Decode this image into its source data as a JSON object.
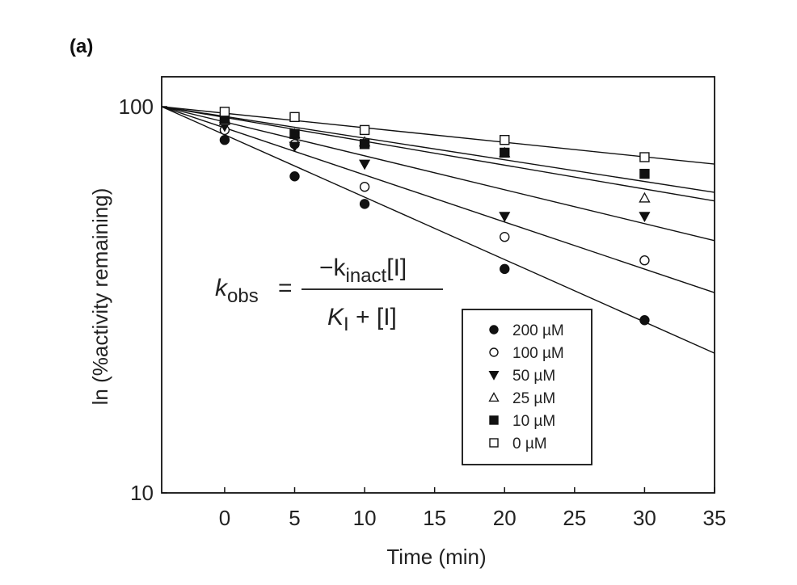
{
  "panel_label": "(a)",
  "equation": {
    "lhs_symbol": "k",
    "lhs_sub": "obs",
    "equals": "=",
    "num_prefix": "−k",
    "num_sub": "inact",
    "num_suffix": "[I]",
    "den_symbol": "K",
    "den_sub": "I",
    "den_suffix": " + [I]"
  },
  "chart_data": {
    "type": "scatter",
    "xlabel": "Time (min)",
    "ylabel": "ln (%activity remaining)",
    "xlim": [
      -4.5,
      35
    ],
    "ylim": [
      10,
      100
    ],
    "yscale": "log",
    "xticks": [
      0,
      5,
      10,
      15,
      20,
      25,
      30,
      35
    ],
    "xtick_labels": [
      "0",
      "5",
      "10",
      "15",
      "20",
      "25",
      "30",
      "35"
    ],
    "yticks": [
      10,
      100
    ],
    "ytick_labels": [
      "10",
      "100"
    ],
    "legend_position": "lower-right",
    "series": [
      {
        "name": "200 µM",
        "marker": "filled-circle",
        "x": [
          0,
          5,
          10,
          20,
          30
        ],
        "y": [
          82,
          66,
          56,
          38,
          28
        ],
        "fit": {
          "x0": -4.5,
          "y0": 100,
          "x1": 35,
          "y1": 23
        }
      },
      {
        "name": "100 µM",
        "marker": "open-circle",
        "x": [
          0,
          5,
          10,
          20,
          30
        ],
        "y": [
          87,
          80,
          62,
          46,
          40
        ],
        "fit": {
          "x0": -4.5,
          "y0": 100,
          "x1": 35,
          "y1": 33
        }
      },
      {
        "name": "50 µM",
        "marker": "filled-triangle-down",
        "x": [
          0,
          5,
          10,
          20,
          30
        ],
        "y": [
          89,
          79,
          71,
          52,
          52
        ],
        "fit": {
          "x0": -4.5,
          "y0": 100,
          "x1": 35,
          "y1": 45
        }
      },
      {
        "name": "25 µM",
        "marker": "open-triangle-up",
        "x": [
          0,
          5,
          10,
          20,
          30
        ],
        "y": [
          92,
          85,
          81,
          76,
          58
        ],
        "fit": {
          "x0": -4.5,
          "y0": 100,
          "x1": 35,
          "y1": 57
        }
      },
      {
        "name": "10 µM",
        "marker": "filled-square",
        "x": [
          0,
          5,
          10,
          20,
          30
        ],
        "y": [
          93,
          85,
          80,
          76,
          67
        ],
        "fit": {
          "x0": -4.5,
          "y0": 100,
          "x1": 35,
          "y1": 60
        }
      },
      {
        "name": "0 µM",
        "marker": "open-square",
        "x": [
          0,
          5,
          10,
          20,
          30
        ],
        "y": [
          97,
          94,
          87,
          82,
          74
        ],
        "fit": {
          "x0": -4.5,
          "y0": 100,
          "x1": 35,
          "y1": 71
        }
      }
    ]
  }
}
